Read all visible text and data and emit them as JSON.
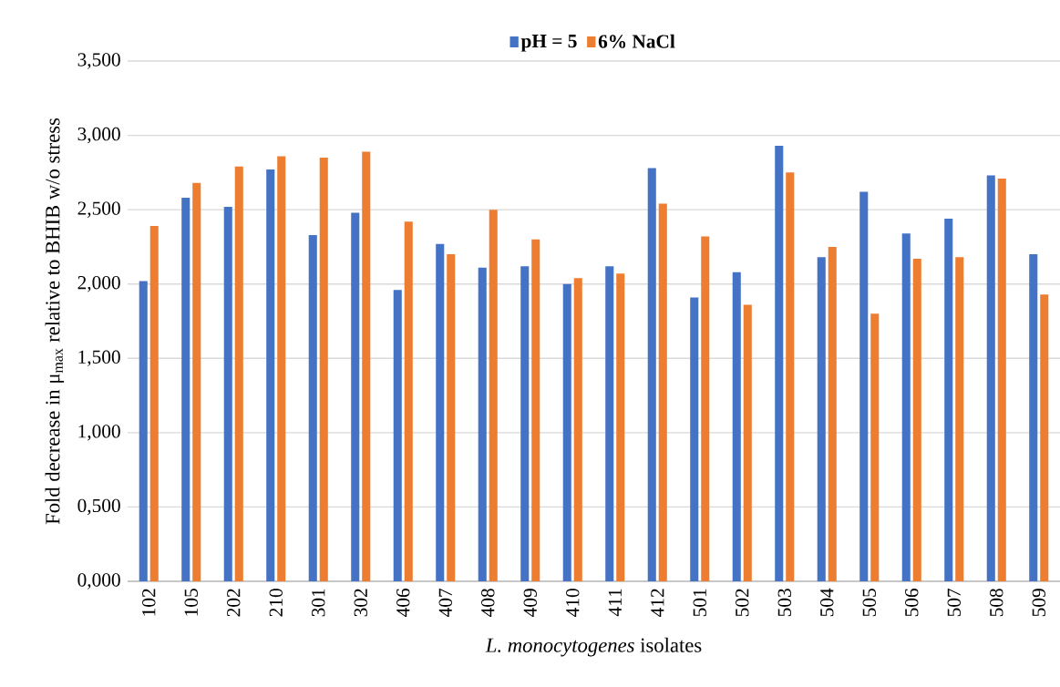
{
  "chart_data": {
    "type": "bar",
    "xlabel": "*L. monocytogenes* isolates",
    "ylabel": "Fold decrease in μ$_{max}$ relative to BHIB w/o stress",
    "categories": [
      "102",
      "105",
      "202",
      "210",
      "301",
      "302",
      "406",
      "407",
      "408",
      "409",
      "410",
      "411",
      "412",
      "501",
      "502",
      "503",
      "504",
      "505",
      "506",
      "507",
      "508",
      "509"
    ],
    "series": [
      {
        "name": "pH = 5",
        "color": "#4472c4",
        "values": [
          2.02,
          2.58,
          2.52,
          2.77,
          2.33,
          2.48,
          1.96,
          2.27,
          2.11,
          2.12,
          2.0,
          2.12,
          2.78,
          1.91,
          2.08,
          2.93,
          2.18,
          2.62,
          2.34,
          2.44,
          2.73,
          2.2
        ]
      },
      {
        "name": "6% NaCl",
        "color": "#ed7d31",
        "values": [
          2.39,
          2.68,
          2.79,
          2.86,
          2.85,
          2.89,
          2.42,
          2.2,
          2.5,
          2.3,
          2.04,
          2.07,
          2.54,
          2.32,
          1.86,
          2.75,
          2.25,
          1.8,
          2.17,
          2.18,
          2.71,
          1.93
        ]
      }
    ],
    "ylim": [
      0,
      3.5
    ],
    "yticks": [
      {
        "value": 0,
        "label": "0,000"
      },
      {
        "value": 0.5,
        "label": "0,500"
      },
      {
        "value": 1,
        "label": "1,000"
      },
      {
        "value": 1.5,
        "label": "1,500"
      },
      {
        "value": 2,
        "label": "2,000"
      },
      {
        "value": 2.5,
        "label": "2,500"
      },
      {
        "value": 3,
        "label": "3,000"
      },
      {
        "value": 3.5,
        "label": "3,500"
      }
    ],
    "grid": "y",
    "legend": "top"
  }
}
